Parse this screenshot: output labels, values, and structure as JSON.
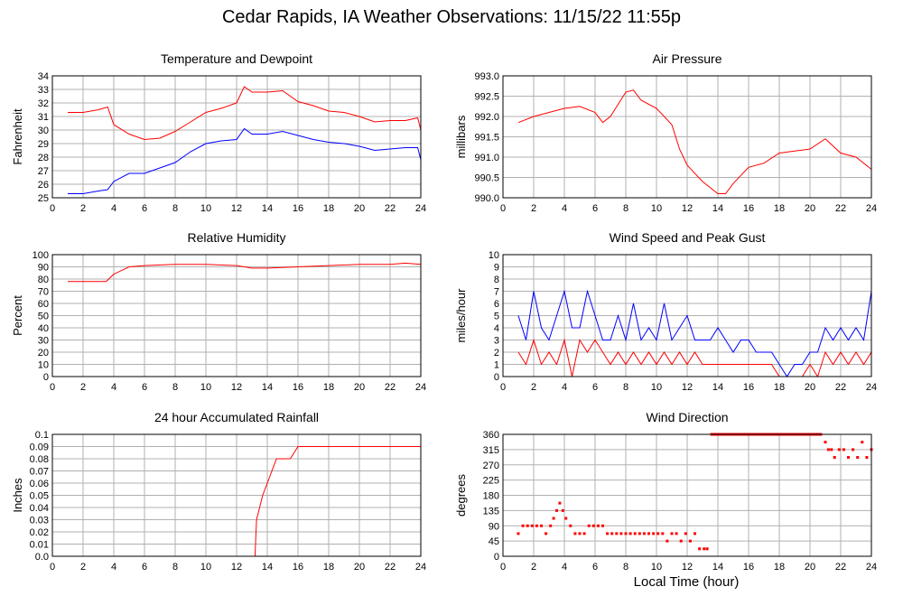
{
  "title": "Cedar Rapids, IA Weather Observations: 11/15/22 11:55p",
  "xlabel": "Local Time (hour)",
  "chart_data": [
    {
      "type": "line",
      "title": "Temperature and Dewpoint",
      "xlabel": "",
      "ylabel": "Fahrenheit",
      "xlim": [
        0,
        24
      ],
      "ylim": [
        25,
        34
      ],
      "xticks": [
        "0",
        "2",
        "4",
        "6",
        "8",
        "10",
        "12",
        "14",
        "16",
        "18",
        "20",
        "22",
        "24"
      ],
      "yticks": [
        "25",
        "26",
        "27",
        "28",
        "29",
        "30",
        "31",
        "32",
        "33",
        "34"
      ],
      "grid": true,
      "series": [
        {
          "color": "#ff0000",
          "x": [
            1,
            2,
            3,
            3.6,
            4,
            5,
            6,
            7,
            8,
            9,
            10,
            11,
            12,
            12.5,
            13,
            14,
            15,
            16,
            17,
            18,
            19,
            20,
            21,
            22,
            23,
            23.8,
            24
          ],
          "values": [
            31.3,
            31.3,
            31.5,
            31.7,
            30.4,
            29.7,
            29.3,
            29.4,
            29.9,
            30.6,
            31.3,
            31.6,
            32.0,
            33.2,
            32.8,
            32.8,
            32.9,
            32.1,
            31.8,
            31.4,
            31.3,
            31.0,
            30.6,
            30.7,
            30.7,
            30.9,
            30.0
          ]
        },
        {
          "color": "#0000ff",
          "x": [
            1,
            2,
            3,
            3.6,
            4,
            5,
            6,
            7,
            8,
            9,
            10,
            11,
            12,
            12.5,
            13,
            14,
            15,
            16,
            17,
            18,
            19,
            20,
            21,
            22,
            23,
            23.8,
            24
          ],
          "values": [
            25.3,
            25.3,
            25.5,
            25.6,
            26.2,
            26.8,
            26.8,
            27.2,
            27.6,
            28.4,
            29.0,
            29.2,
            29.3,
            30.1,
            29.7,
            29.7,
            29.9,
            29.6,
            29.3,
            29.1,
            29.0,
            28.8,
            28.5,
            28.6,
            28.7,
            28.7,
            27.8
          ]
        }
      ]
    },
    {
      "type": "line",
      "title": "Air Pressure",
      "xlabel": "",
      "ylabel": "millibars",
      "xlim": [
        0,
        24
      ],
      "ylim": [
        990.0,
        993.0
      ],
      "xticks": [
        "0",
        "2",
        "4",
        "6",
        "8",
        "10",
        "12",
        "14",
        "16",
        "18",
        "20",
        "22",
        "24"
      ],
      "yticks": [
        "990.0",
        "990.5",
        "991.0",
        "991.5",
        "992.0",
        "992.5",
        "993.0"
      ],
      "grid": true,
      "series": [
        {
          "color": "#ff0000",
          "x": [
            1,
            2,
            3,
            4,
            5,
            6,
            6.5,
            7,
            8,
            8.5,
            9,
            10,
            11,
            11.5,
            12,
            13,
            14,
            14.5,
            15,
            16,
            17,
            18,
            19,
            20,
            21,
            22,
            23,
            24
          ],
          "values": [
            991.85,
            992.0,
            992.1,
            992.2,
            992.25,
            992.1,
            991.85,
            992.0,
            992.6,
            992.65,
            992.4,
            992.2,
            991.8,
            991.2,
            990.8,
            990.4,
            990.1,
            990.1,
            990.35,
            990.75,
            990.85,
            991.1,
            991.15,
            991.2,
            991.45,
            991.1,
            991.0,
            990.7
          ]
        }
      ]
    },
    {
      "type": "line",
      "title": "Relative Humidity",
      "xlabel": "",
      "ylabel": "Percent",
      "xlim": [
        0,
        24
      ],
      "ylim": [
        0,
        100
      ],
      "xticks": [
        "0",
        "2",
        "4",
        "6",
        "8",
        "10",
        "12",
        "14",
        "16",
        "18",
        "20",
        "22",
        "24"
      ],
      "yticks": [
        "0",
        "10",
        "20",
        "30",
        "40",
        "50",
        "60",
        "70",
        "80",
        "90",
        "100"
      ],
      "grid": true,
      "series": [
        {
          "color": "#ff0000",
          "x": [
            1,
            2,
            3,
            3.5,
            4,
            5,
            6,
            8,
            10,
            12,
            13,
            14,
            16,
            18,
            20,
            22,
            23,
            24
          ],
          "values": [
            78,
            78,
            78,
            78,
            84,
            90,
            91,
            92,
            92,
            91,
            89,
            89,
            90,
            91,
            92,
            92,
            93,
            92
          ]
        }
      ]
    },
    {
      "type": "line",
      "title": "Wind Speed and Peak Gust",
      "xlabel": "",
      "ylabel": "miles/hour",
      "xlim": [
        0,
        24
      ],
      "ylim": [
        0,
        10
      ],
      "xticks": [
        "0",
        "2",
        "4",
        "6",
        "8",
        "10",
        "12",
        "14",
        "16",
        "18",
        "20",
        "22",
        "24"
      ],
      "yticks": [
        "0",
        "1",
        "2",
        "3",
        "4",
        "5",
        "6",
        "7",
        "8",
        "9",
        "10"
      ],
      "grid": true,
      "series": [
        {
          "color": "#0000ff",
          "x": [
            1,
            1.5,
            2,
            2.5,
            3,
            3.5,
            4,
            4.5,
            5,
            5.5,
            6,
            6.5,
            7,
            7.5,
            8,
            8.5,
            9,
            9.5,
            10,
            10.5,
            11,
            11.5,
            12,
            12.5,
            13,
            13.5,
            14,
            14.5,
            15,
            15.5,
            16,
            16.5,
            17,
            17.5,
            18,
            18.5,
            19,
            19.5,
            20,
            20.5,
            21,
            21.5,
            22,
            22.5,
            23,
            23.5,
            24
          ],
          "values": [
            5,
            3,
            7,
            4,
            3,
            5,
            7,
            4,
            4,
            7,
            5,
            3,
            3,
            5,
            3,
            6,
            3,
            4,
            3,
            6,
            3,
            4,
            5,
            3,
            3,
            3,
            4,
            3,
            2,
            3,
            3,
            2,
            2,
            2,
            1,
            0,
            1,
            1,
            2,
            2,
            4,
            3,
            4,
            3,
            4,
            3,
            7
          ]
        },
        {
          "color": "#ff0000",
          "x": [
            1,
            1.5,
            2,
            2.5,
            3,
            3.5,
            4,
            4.5,
            5,
            5.5,
            6,
            6.5,
            7,
            7.5,
            8,
            8.5,
            9,
            9.5,
            10,
            10.5,
            11,
            11.5,
            12,
            12.5,
            13,
            13.5,
            14,
            14.5,
            15,
            15.5,
            16,
            16.5,
            17,
            17.5,
            18,
            18.5,
            19,
            19.5,
            20,
            20.5,
            21,
            21.5,
            22,
            22.5,
            23,
            23.5,
            24
          ],
          "values": [
            2,
            1,
            3,
            1,
            2,
            1,
            3,
            0,
            3,
            2,
            3,
            2,
            1,
            2,
            1,
            2,
            1,
            2,
            1,
            2,
            1,
            2,
            1,
            2,
            1,
            1,
            1,
            1,
            1,
            1,
            1,
            1,
            1,
            1,
            0,
            0,
            0,
            0,
            1,
            0,
            2,
            1,
            2,
            1,
            2,
            1,
            2
          ]
        }
      ]
    },
    {
      "type": "line",
      "title": "24 hour Accumulated Rainfall",
      "xlabel": "",
      "ylabel": "Inches",
      "xlim": [
        0,
        24
      ],
      "ylim": [
        0.0,
        0.1
      ],
      "xticks": [
        "0",
        "2",
        "4",
        "6",
        "8",
        "10",
        "12",
        "14",
        "16",
        "18",
        "20",
        "22",
        "24"
      ],
      "yticks": [
        "0.0",
        "0.01",
        "0.02",
        "0.03",
        "0.04",
        "0.05",
        "0.06",
        "0.07",
        "0.08",
        "0.09",
        "0.1"
      ],
      "grid": true,
      "series": [
        {
          "color": "#ff0000",
          "x": [
            1,
            13.2,
            13.3,
            13.5,
            13.7,
            14.0,
            14.3,
            14.6,
            15.0,
            15.5,
            16.0,
            18,
            20,
            22,
            24
          ],
          "values": [
            0,
            0,
            0.03,
            0.04,
            0.05,
            0.06,
            0.07,
            0.08,
            0.08,
            0.08,
            0.09,
            0.09,
            0.09,
            0.09,
            0.09
          ]
        }
      ]
    },
    {
      "type": "scatter",
      "title": "Wind Direction",
      "xlabel": "Local Time (hour)",
      "ylabel": "degrees",
      "xlim": [
        0,
        24
      ],
      "ylim": [
        0,
        360
      ],
      "xticks": [
        "0",
        "2",
        "4",
        "6",
        "8",
        "10",
        "12",
        "14",
        "16",
        "18",
        "20",
        "22",
        "24"
      ],
      "yticks": [
        "0",
        "45",
        "90",
        "135",
        "180",
        "225",
        "270",
        "315",
        "360"
      ],
      "grid": true,
      "series": [
        {
          "color": "#ff0000",
          "x": [
            1,
            1.3,
            1.6,
            1.9,
            2.2,
            2.5,
            2.8,
            3.1,
            3.3,
            3.5,
            3.7,
            3.9,
            4.1,
            4.4,
            4.7,
            5.0,
            5.3,
            5.6,
            5.9,
            6.2,
            6.5,
            6.8,
            7.1,
            7.4,
            7.7,
            8.0,
            8.3,
            8.6,
            8.9,
            9.2,
            9.5,
            9.8,
            10.1,
            10.4,
            10.7,
            11.0,
            11.3,
            11.6,
            11.9,
            12.2,
            12.5,
            12.8,
            13.1,
            13.3,
            13.6,
            14,
            15,
            16,
            17,
            18,
            19,
            20,
            20.7,
            21.0,
            21.2,
            21.4,
            21.6,
            21.9,
            22.2,
            22.5,
            22.8,
            23.1,
            23.4,
            23.7,
            24
          ],
          "values": [
            67,
            90,
            90,
            90,
            90,
            90,
            67,
            90,
            112,
            135,
            157,
            135,
            112,
            90,
            67,
            67,
            67,
            90,
            90,
            90,
            90,
            67,
            67,
            67,
            67,
            67,
            67,
            67,
            67,
            67,
            67,
            67,
            67,
            67,
            45,
            67,
            67,
            45,
            67,
            45,
            67,
            22,
            22,
            22,
            360,
            360,
            360,
            360,
            360,
            360,
            360,
            360,
            360,
            337,
            315,
            315,
            292,
            315,
            315,
            292,
            315,
            292,
            337,
            292,
            315
          ]
        }
      ]
    }
  ]
}
